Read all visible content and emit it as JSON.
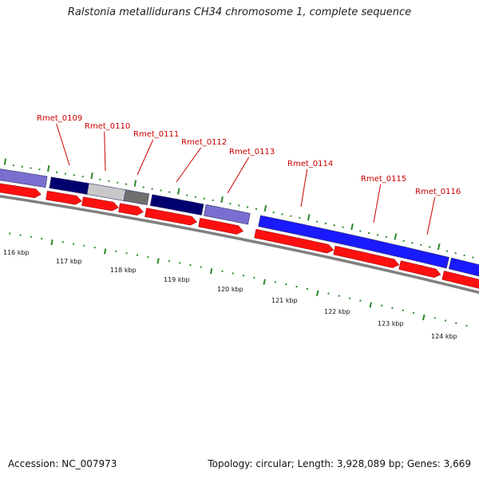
{
  "title": "Ralstonia metallidurans CH34 chromosome 1, complete sequence",
  "colors": {
    "gene_label": "#cc0000",
    "tick": "#2a8a2a",
    "backbone": "#808080",
    "cds_arrow": "#ff1010",
    "navy": "#00006e",
    "lavender": "#7a6fd0",
    "light_gray": "#c8c8c8",
    "dark_gray": "#707070",
    "blue": "#1a1aff"
  },
  "gene_labels": [
    {
      "name": "Rmet_0109"
    },
    {
      "name": "Rmet_0110"
    },
    {
      "name": "Rmet_0111"
    },
    {
      "name": "Rmet_0112"
    },
    {
      "name": "Rmet_0113"
    },
    {
      "name": "Rmet_0114"
    },
    {
      "name": "Rmet_0115"
    },
    {
      "name": "Rmet_0116"
    }
  ],
  "kbp_labels": [
    "116 kbp",
    "117 kbp",
    "118 kbp",
    "119 kbp",
    "120 kbp",
    "121 kbp",
    "122 kbp",
    "123 kbp",
    "124 kbp"
  ],
  "footer": {
    "accession": "Accession: NC_007973",
    "summary": "Topology: circular; Length: 3,928,089 bp; Genes: 3,669"
  }
}
